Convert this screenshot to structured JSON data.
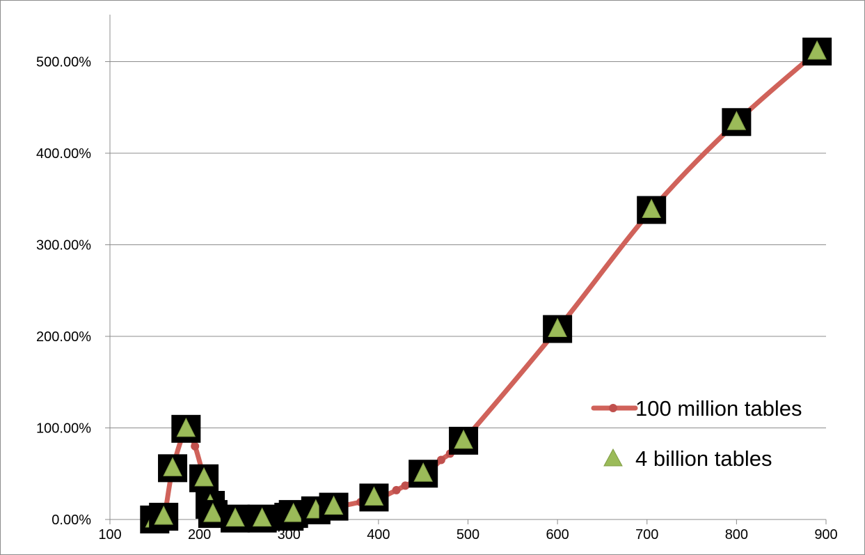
{
  "chart_data": {
    "type": "line",
    "title": "",
    "xlabel": "",
    "ylabel": "",
    "xlim": [
      100,
      900
    ],
    "ylim": [
      0,
      5.5
    ],
    "x_ticks": [
      100,
      200,
      300,
      400,
      500,
      600,
      700,
      800,
      900
    ],
    "x_tick_labels": [
      "100",
      "200",
      "300",
      "400",
      "500",
      "600",
      "700",
      "800",
      "900"
    ],
    "y_ticks": [
      0,
      1,
      2,
      3,
      4,
      5
    ],
    "y_tick_labels": [
      "0.00%",
      "100.00%",
      "200.00%",
      "300.00%",
      "400.00%",
      "500.00%"
    ],
    "grid": "horizontal",
    "legend_position": "bottom-right",
    "series": [
      {
        "name": "100 million tables",
        "style": "smooth-line-with-circle-markers",
        "color": "#d0625a",
        "x": [
          150,
          160,
          170,
          185,
          195,
          205,
          212,
          220,
          240,
          270,
          300,
          330,
          350,
          380,
          400,
          420,
          430,
          450,
          470,
          480,
          495,
          600,
          705,
          800,
          890
        ],
        "y": [
          0.0,
          0.02,
          0.55,
          0.98,
          0.8,
          0.45,
          0.18,
          0.06,
          0.0,
          0.0,
          0.05,
          0.09,
          0.13,
          0.19,
          0.23,
          0.32,
          0.37,
          0.47,
          0.65,
          0.72,
          0.86,
          2.08,
          3.38,
          4.34,
          5.11
        ]
      },
      {
        "name": "4 billion tables",
        "style": "triangle-markers",
        "color": "#9bbb59",
        "x": [
          150,
          160,
          170,
          185,
          205,
          212,
          215,
          240,
          270,
          300,
          305,
          330,
          350,
          395,
          450,
          495,
          600,
          705,
          800,
          890
        ],
        "y": [
          0.0,
          0.03,
          0.56,
          0.99,
          0.45,
          0.16,
          0.06,
          0.01,
          0.01,
          0.03,
          0.06,
          0.1,
          0.14,
          0.24,
          0.5,
          0.86,
          2.08,
          3.38,
          4.34,
          5.11
        ]
      }
    ]
  }
}
